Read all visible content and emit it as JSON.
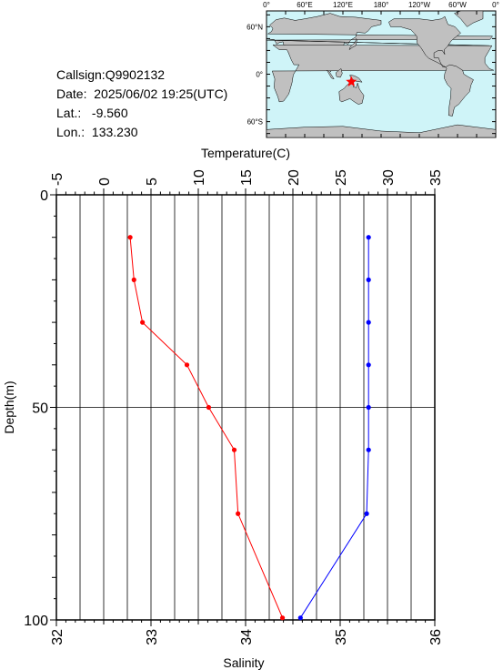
{
  "station": {
    "callsign_label": "Callsign:",
    "callsign": "Q9902132",
    "date_label": "Date:",
    "date": "2025/06/02 19:25(UTC)",
    "lat_label": "Lat.:",
    "lat": "-9.560",
    "lon_label": "Lon.:",
    "lon": "133.230"
  },
  "map": {
    "lon_ticks": [
      "0°",
      "60°E",
      "120°E",
      "180°",
      "120°W",
      "60°W",
      "0°"
    ],
    "lat_ticks": [
      "60°N",
      "0°",
      "60°S"
    ],
    "ocean_color": "#cff4f8",
    "land_color": "#c0c0c0",
    "marker_color": "#ff0000",
    "marker_lon": 133.23,
    "marker_lat": -9.56
  },
  "chart_data": {
    "type": "line",
    "xlabel_top": "Temperature(C)",
    "xlabel_bottom": "Salinity",
    "ylabel": "Depth(m)",
    "temperature_axis": {
      "range": [
        -5,
        35
      ],
      "ticks": [
        -5,
        0,
        5,
        10,
        15,
        20,
        25,
        30,
        35
      ]
    },
    "salinity_axis": {
      "range": [
        32,
        36
      ],
      "ticks": [
        32,
        33,
        34,
        35,
        36
      ]
    },
    "depth_axis": {
      "range": [
        0,
        100
      ],
      "inverted": true,
      "ticks": [
        0,
        50,
        100
      ]
    },
    "grid": true,
    "series": [
      {
        "axis": "temperature",
        "color": "#ff0000",
        "depth": [
          10,
          20,
          30,
          40,
          50,
          60,
          75,
          99.5
        ],
        "values": [
          2.8,
          3.2,
          4.1,
          8.8,
          11.1,
          13.8,
          14.2,
          18.9
        ]
      },
      {
        "axis": "salinity",
        "color": "#0000ff",
        "depth": [
          10,
          20,
          30,
          40,
          50,
          60,
          75,
          99.5
        ],
        "values": [
          35.3,
          35.3,
          35.3,
          35.3,
          35.3,
          35.3,
          35.28,
          34.58
        ]
      }
    ]
  }
}
